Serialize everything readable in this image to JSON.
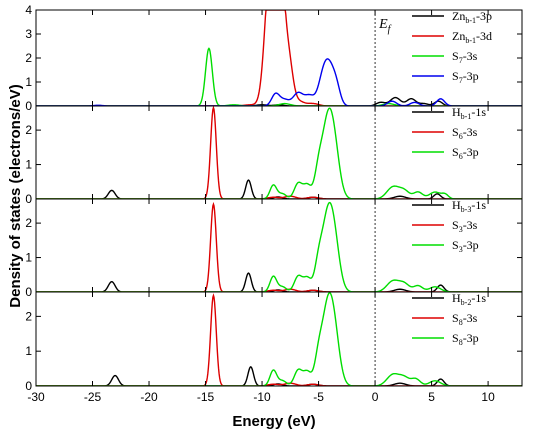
{
  "chart_data": {
    "type": "line",
    "xlabel": "Energy (eV)",
    "ylabel": "Density of states (electrons/eV)",
    "xlim": [
      -30,
      13
    ],
    "xticks": [
      -30,
      -25,
      -20,
      -15,
      -10,
      -5,
      0,
      5,
      10
    ],
    "fermi_label_main": "E",
    "fermi_label_sub": "f",
    "fermi_energy": 0,
    "grid": false,
    "legend_placement": "top-right",
    "panels": [
      {
        "ylim": [
          0,
          4
        ],
        "yticks": [
          0,
          1,
          2,
          3,
          4
        ],
        "series": [
          {
            "name_main": "Zn",
            "name_sub": "b-1",
            "name_tail": "-3p",
            "color": "#000000",
            "peaks": [
              [
                -10,
                0.05,
                0.5
              ],
              [
                -8.5,
                0.05,
                0.4
              ],
              [
                0.5,
                0.15,
                0.4
              ],
              [
                1.8,
                0.35,
                0.45
              ],
              [
                3.2,
                0.3,
                0.4
              ],
              [
                4.3,
                0.1,
                0.4
              ],
              [
                5.6,
                0.2,
                0.35
              ]
            ]
          },
          {
            "name_main": "Zn",
            "name_sub": "b-1",
            "name_tail": "-3d",
            "color": "#dd0000",
            "peaks": [
              [
                -9.3,
                5.5,
                0.45
              ],
              [
                -8.4,
                5.8,
                0.4
              ],
              [
                -7.6,
                1.6,
                0.35
              ],
              [
                -6.8,
                0.2,
                0.5
              ],
              [
                -5.5,
                0.1,
                0.5
              ],
              [
                -11,
                0.05,
                0.6
              ]
            ]
          },
          {
            "name_main": "S",
            "name_sub": "7",
            "name_tail": "-3s",
            "color": "#00dd00",
            "peaks": [
              [
                -14.7,
                2.4,
                0.3
              ],
              [
                -12.5,
                0.05,
                0.5
              ],
              [
                1.2,
                0.1,
                0.5
              ],
              [
                -8,
                0.1,
                0.5
              ]
            ]
          },
          {
            "name_main": "S",
            "name_sub": "7",
            "name_tail": "-3p",
            "color": "#0000ee",
            "peaks": [
              [
                -8.8,
                0.5,
                0.35
              ],
              [
                -8,
                0.25,
                0.4
              ],
              [
                -6.8,
                0.55,
                0.45
              ],
              [
                -5.8,
                0.4,
                0.4
              ],
              [
                -4.6,
                1.1,
                0.45
              ],
              [
                -4.0,
                1.3,
                0.45
              ],
              [
                -3.4,
                0.6,
                0.35
              ],
              [
                1.5,
                0.2,
                0.4
              ],
              [
                3.5,
                0.15,
                0.4
              ],
              [
                5.8,
                0.3,
                0.35
              ],
              [
                -24.5,
                0.03,
                0.4
              ]
            ]
          }
        ]
      },
      {
        "ylim": [
          0,
          2.7
        ],
        "yticks": [
          0,
          1,
          2
        ],
        "series": [
          {
            "name_main": "H",
            "name_sub": "b-1",
            "name_tail": "-1s",
            "color": "#000000",
            "peaks": [
              [
                -23.3,
                0.25,
                0.3
              ],
              [
                -11.2,
                0.55,
                0.25
              ],
              [
                -8.6,
                0.06,
                0.4
              ],
              [
                -5.5,
                0.05,
                0.5
              ],
              [
                2.2,
                0.08,
                0.5
              ],
              [
                5.5,
                0.15,
                0.3
              ]
            ]
          },
          {
            "name_main": "S",
            "name_sub": "6",
            "name_tail": "-3s",
            "color": "#dd0000",
            "peaks": [
              [
                -14.3,
                2.65,
                0.25
              ],
              [
                -9,
                0.05,
                0.5
              ],
              [
                -7.5,
                0.08,
                0.5
              ],
              [
                -5.5,
                0.05,
                0.5
              ]
            ]
          },
          {
            "name_main": "S",
            "name_sub": "6",
            "name_tail": "-3p",
            "color": "#00dd00",
            "peaks": [
              [
                -9.0,
                0.4,
                0.3
              ],
              [
                -8.2,
                0.15,
                0.35
              ],
              [
                -6.8,
                0.45,
                0.35
              ],
              [
                -6.0,
                0.4,
                0.35
              ],
              [
                -5.0,
                0.8,
                0.35
              ],
              [
                -4.3,
                1.5,
                0.45
              ],
              [
                -3.7,
                1.7,
                0.5
              ],
              [
                1.6,
                0.35,
                0.55
              ],
              [
                2.6,
                0.22,
                0.45
              ],
              [
                3.8,
                0.2,
                0.4
              ],
              [
                5.3,
                0.2,
                0.5
              ],
              [
                6.2,
                0.12,
                0.3
              ]
            ]
          }
        ]
      },
      {
        "ylim": [
          0,
          2.7
        ],
        "yticks": [
          0,
          1,
          2
        ],
        "series": [
          {
            "name_main": "H",
            "name_sub": "b-3",
            "name_tail": "-1s",
            "color": "#000000",
            "peaks": [
              [
                -23.3,
                0.3,
                0.3
              ],
              [
                -11.2,
                0.55,
                0.25
              ],
              [
                -8.6,
                0.06,
                0.4
              ],
              [
                -5.5,
                0.05,
                0.5
              ],
              [
                2.2,
                0.08,
                0.5
              ],
              [
                5.8,
                0.2,
                0.3
              ]
            ]
          },
          {
            "name_main": "S",
            "name_sub": "3",
            "name_tail": "-3s",
            "color": "#dd0000",
            "peaks": [
              [
                -14.3,
                2.55,
                0.25
              ],
              [
                -9,
                0.05,
                0.5
              ],
              [
                -7.5,
                0.08,
                0.5
              ],
              [
                -5.5,
                0.05,
                0.5
              ]
            ]
          },
          {
            "name_main": "S",
            "name_sub": "3",
            "name_tail": "-3p",
            "color": "#00dd00",
            "peaks": [
              [
                -9.0,
                0.45,
                0.3
              ],
              [
                -8.2,
                0.15,
                0.35
              ],
              [
                -6.8,
                0.45,
                0.35
              ],
              [
                -6.0,
                0.4,
                0.35
              ],
              [
                -5.0,
                0.8,
                0.35
              ],
              [
                -4.3,
                1.45,
                0.45
              ],
              [
                -3.7,
                1.7,
                0.5
              ],
              [
                1.6,
                0.32,
                0.55
              ],
              [
                2.6,
                0.22,
                0.45
              ],
              [
                3.8,
                0.18,
                0.4
              ],
              [
                5.3,
                0.15,
                0.5
              ]
            ]
          }
        ]
      },
      {
        "ylim": [
          0,
          2.7
        ],
        "yticks": [
          0,
          1,
          2
        ],
        "series": [
          {
            "name_main": "H",
            "name_sub": "b-2",
            "name_tail": "-1s",
            "color": "#000000",
            "peaks": [
              [
                -23.0,
                0.3,
                0.3
              ],
              [
                -11.0,
                0.55,
                0.25
              ],
              [
                -8.6,
                0.06,
                0.4
              ],
              [
                -5.5,
                0.05,
                0.5
              ],
              [
                2.2,
                0.08,
                0.5
              ],
              [
                5.8,
                0.2,
                0.3
              ]
            ]
          },
          {
            "name_main": "S",
            "name_sub": "8",
            "name_tail": "-3s",
            "color": "#dd0000",
            "peaks": [
              [
                -14.3,
                2.6,
                0.25
              ],
              [
                -9,
                0.05,
                0.5
              ],
              [
                -7.5,
                0.08,
                0.5
              ],
              [
                -5.5,
                0.05,
                0.5
              ]
            ]
          },
          {
            "name_main": "S",
            "name_sub": "8",
            "name_tail": "-3p",
            "color": "#00dd00",
            "peaks": [
              [
                -9.0,
                0.45,
                0.3
              ],
              [
                -8.2,
                0.15,
                0.35
              ],
              [
                -6.8,
                0.45,
                0.35
              ],
              [
                -6.0,
                0.4,
                0.35
              ],
              [
                -5.0,
                0.8,
                0.35
              ],
              [
                -4.3,
                1.5,
                0.45
              ],
              [
                -3.7,
                1.75,
                0.5
              ],
              [
                1.6,
                0.33,
                0.55
              ],
              [
                2.6,
                0.22,
                0.45
              ],
              [
                3.6,
                0.2,
                0.4
              ],
              [
                5.3,
                0.15,
                0.5
              ]
            ]
          }
        ]
      }
    ]
  }
}
